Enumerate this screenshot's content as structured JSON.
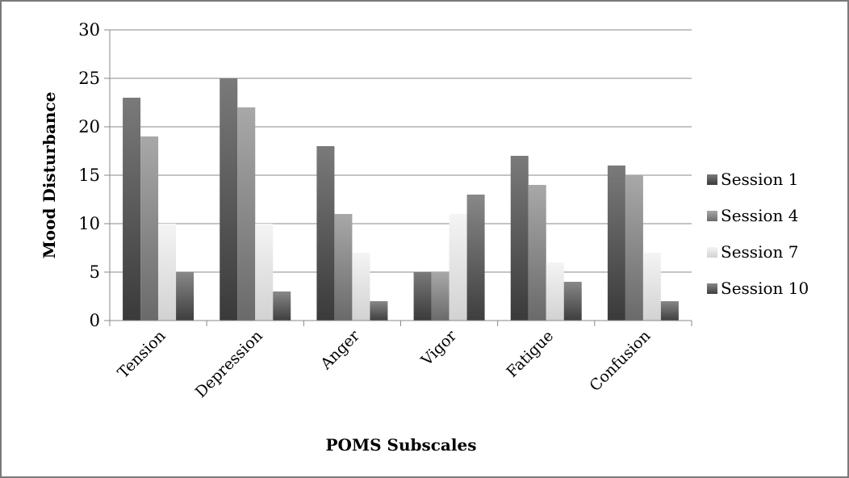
{
  "chart_data": {
    "type": "bar",
    "categories": [
      "Tension",
      "Depression",
      "Anger",
      "Vigor",
      "Fatigue",
      "Confusion"
    ],
    "series": [
      {
        "name": "Session 1",
        "values": [
          23,
          25,
          18,
          5,
          17,
          16
        ],
        "color": "#5e5e5e"
      },
      {
        "name": "Session 4",
        "values": [
          19,
          22,
          11,
          5,
          14,
          15
        ],
        "color": "#8c8c8c"
      },
      {
        "name": "Session 7",
        "values": [
          10,
          10,
          7,
          11,
          6,
          7
        ],
        "color": "#e4e4e4"
      },
      {
        "name": "Session 10",
        "values": [
          5,
          3,
          2,
          13,
          4,
          2
        ],
        "color": "#666666"
      }
    ],
    "xlabel": "POMS Subscales",
    "ylabel": "Mood Disturbance",
    "ylim": [
      0,
      30
    ],
    "yticks": [
      0,
      5,
      10,
      15,
      20,
      25,
      30
    ],
    "grid": true,
    "legend_position": "right"
  }
}
